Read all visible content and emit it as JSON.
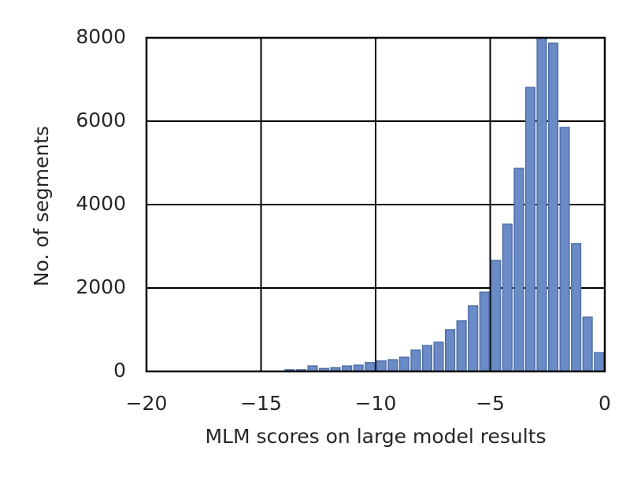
{
  "chart_data": {
    "type": "histogram",
    "xlabel": "MLM scores on large model results",
    "ylabel": "No. of  segments",
    "bins": [
      -14,
      -13.5,
      -13,
      -12.5,
      -12,
      -11.5,
      -11,
      -10.5,
      -10,
      -9.5,
      -9,
      -8.5,
      -8,
      -7.5,
      -7,
      -6.5,
      -6,
      -5.5,
      -5,
      -4.5,
      -4,
      -3.5,
      -3,
      -2.5,
      -2,
      -1.5,
      -1,
      -0.5,
      0
    ],
    "values": [
      40,
      40,
      130,
      70,
      90,
      130,
      150,
      210,
      250,
      280,
      340,
      510,
      620,
      700,
      1000,
      1210,
      1570,
      1900,
      2660,
      3530,
      4870,
      6810,
      8000,
      7870,
      5850,
      3060,
      1300,
      450
    ],
    "color": "#6a8bc6",
    "xlim": [
      -20,
      0
    ],
    "xticks": [
      {
        "value": -20,
        "label": "−20"
      },
      {
        "value": -15,
        "label": "−15"
      },
      {
        "value": -10,
        "label": "−10"
      },
      {
        "value": -5,
        "label": "−5"
      },
      0
    ],
    "ylim": [
      0,
      8000
    ],
    "yticks": [
      0,
      2000,
      4000,
      6000,
      8000
    ],
    "grid": true
  }
}
